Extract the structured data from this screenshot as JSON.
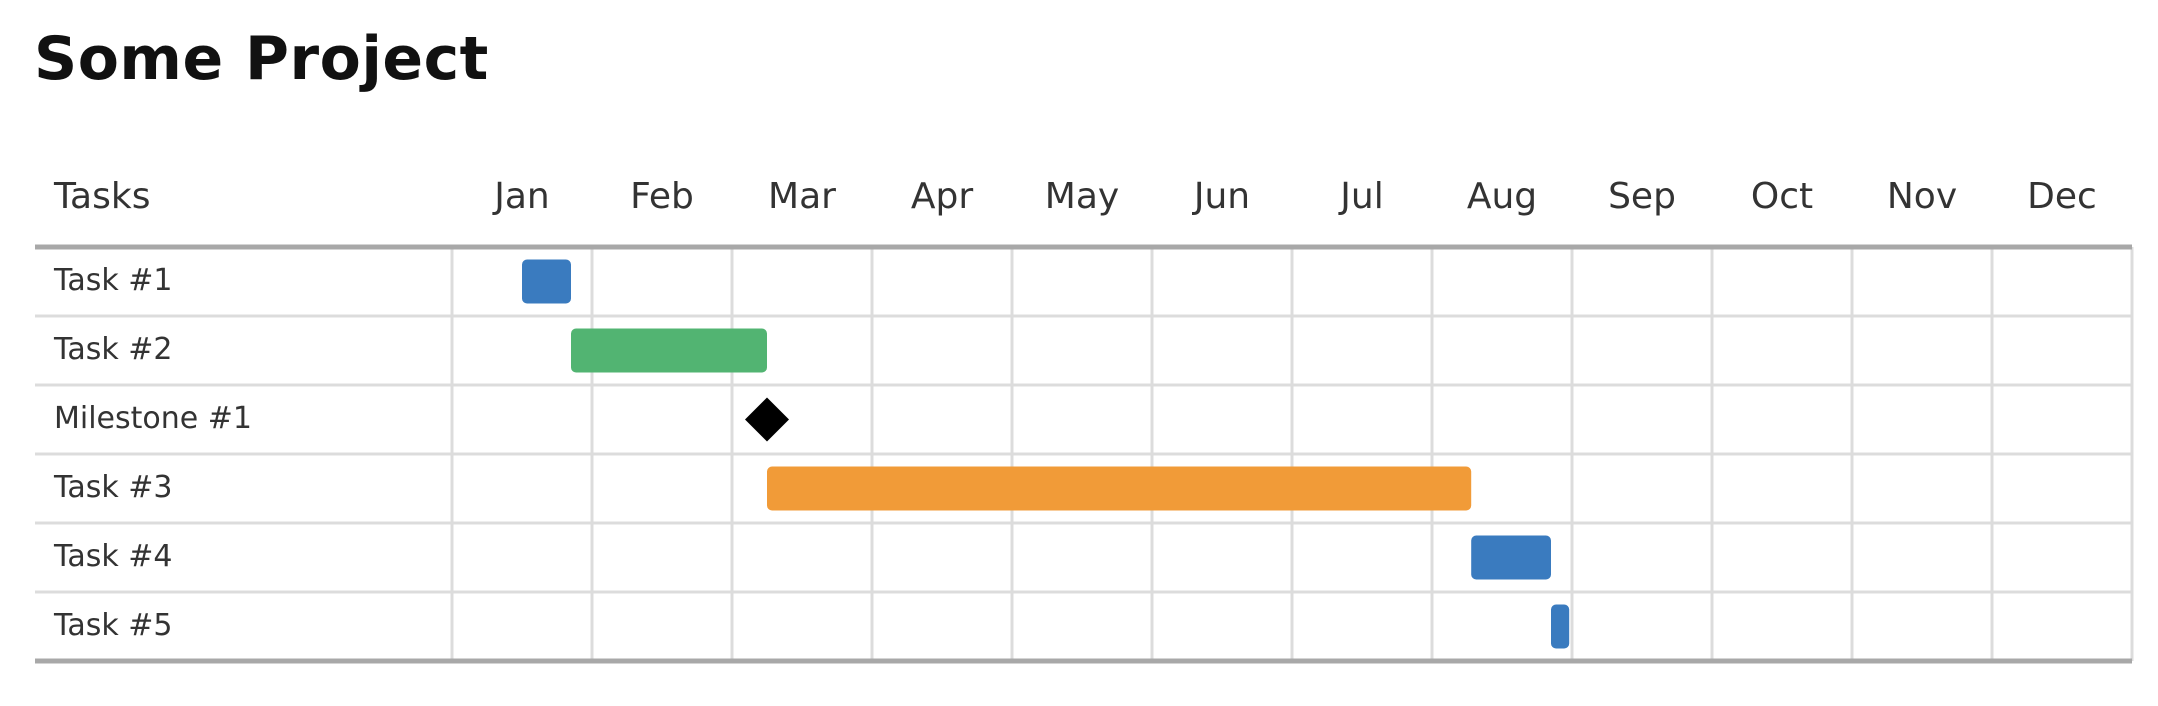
{
  "chart_data": {
    "type": "gantt",
    "title": "Some Project",
    "task_column_header": "Tasks",
    "months": [
      "Jan",
      "Feb",
      "Mar",
      "Apr",
      "May",
      "Jun",
      "Jul",
      "Aug",
      "Sep",
      "Oct",
      "Nov",
      "Dec"
    ],
    "tasks": [
      {
        "name": "Task #1",
        "start": 0.5,
        "end": 0.85,
        "kind": "bar",
        "color": "#3a7bbf"
      },
      {
        "name": "Task #2",
        "start": 0.85,
        "end": 2.25,
        "kind": "bar",
        "color": "#52b472"
      },
      {
        "name": "Milestone #1",
        "start": 2.25,
        "end": 2.25,
        "kind": "milestone",
        "color": "#000000"
      },
      {
        "name": "Task #3",
        "start": 2.25,
        "end": 7.28,
        "kind": "bar",
        "color": "#f19b38"
      },
      {
        "name": "Task #4",
        "start": 7.28,
        "end": 7.85,
        "kind": "bar",
        "color": "#3a7bbf"
      },
      {
        "name": "Task #5",
        "start": 7.85,
        "end": 7.98,
        "kind": "bar",
        "color": "#3a7bbf"
      }
    ],
    "x_unit": "months elapsed since start of Jan",
    "grid": true
  }
}
